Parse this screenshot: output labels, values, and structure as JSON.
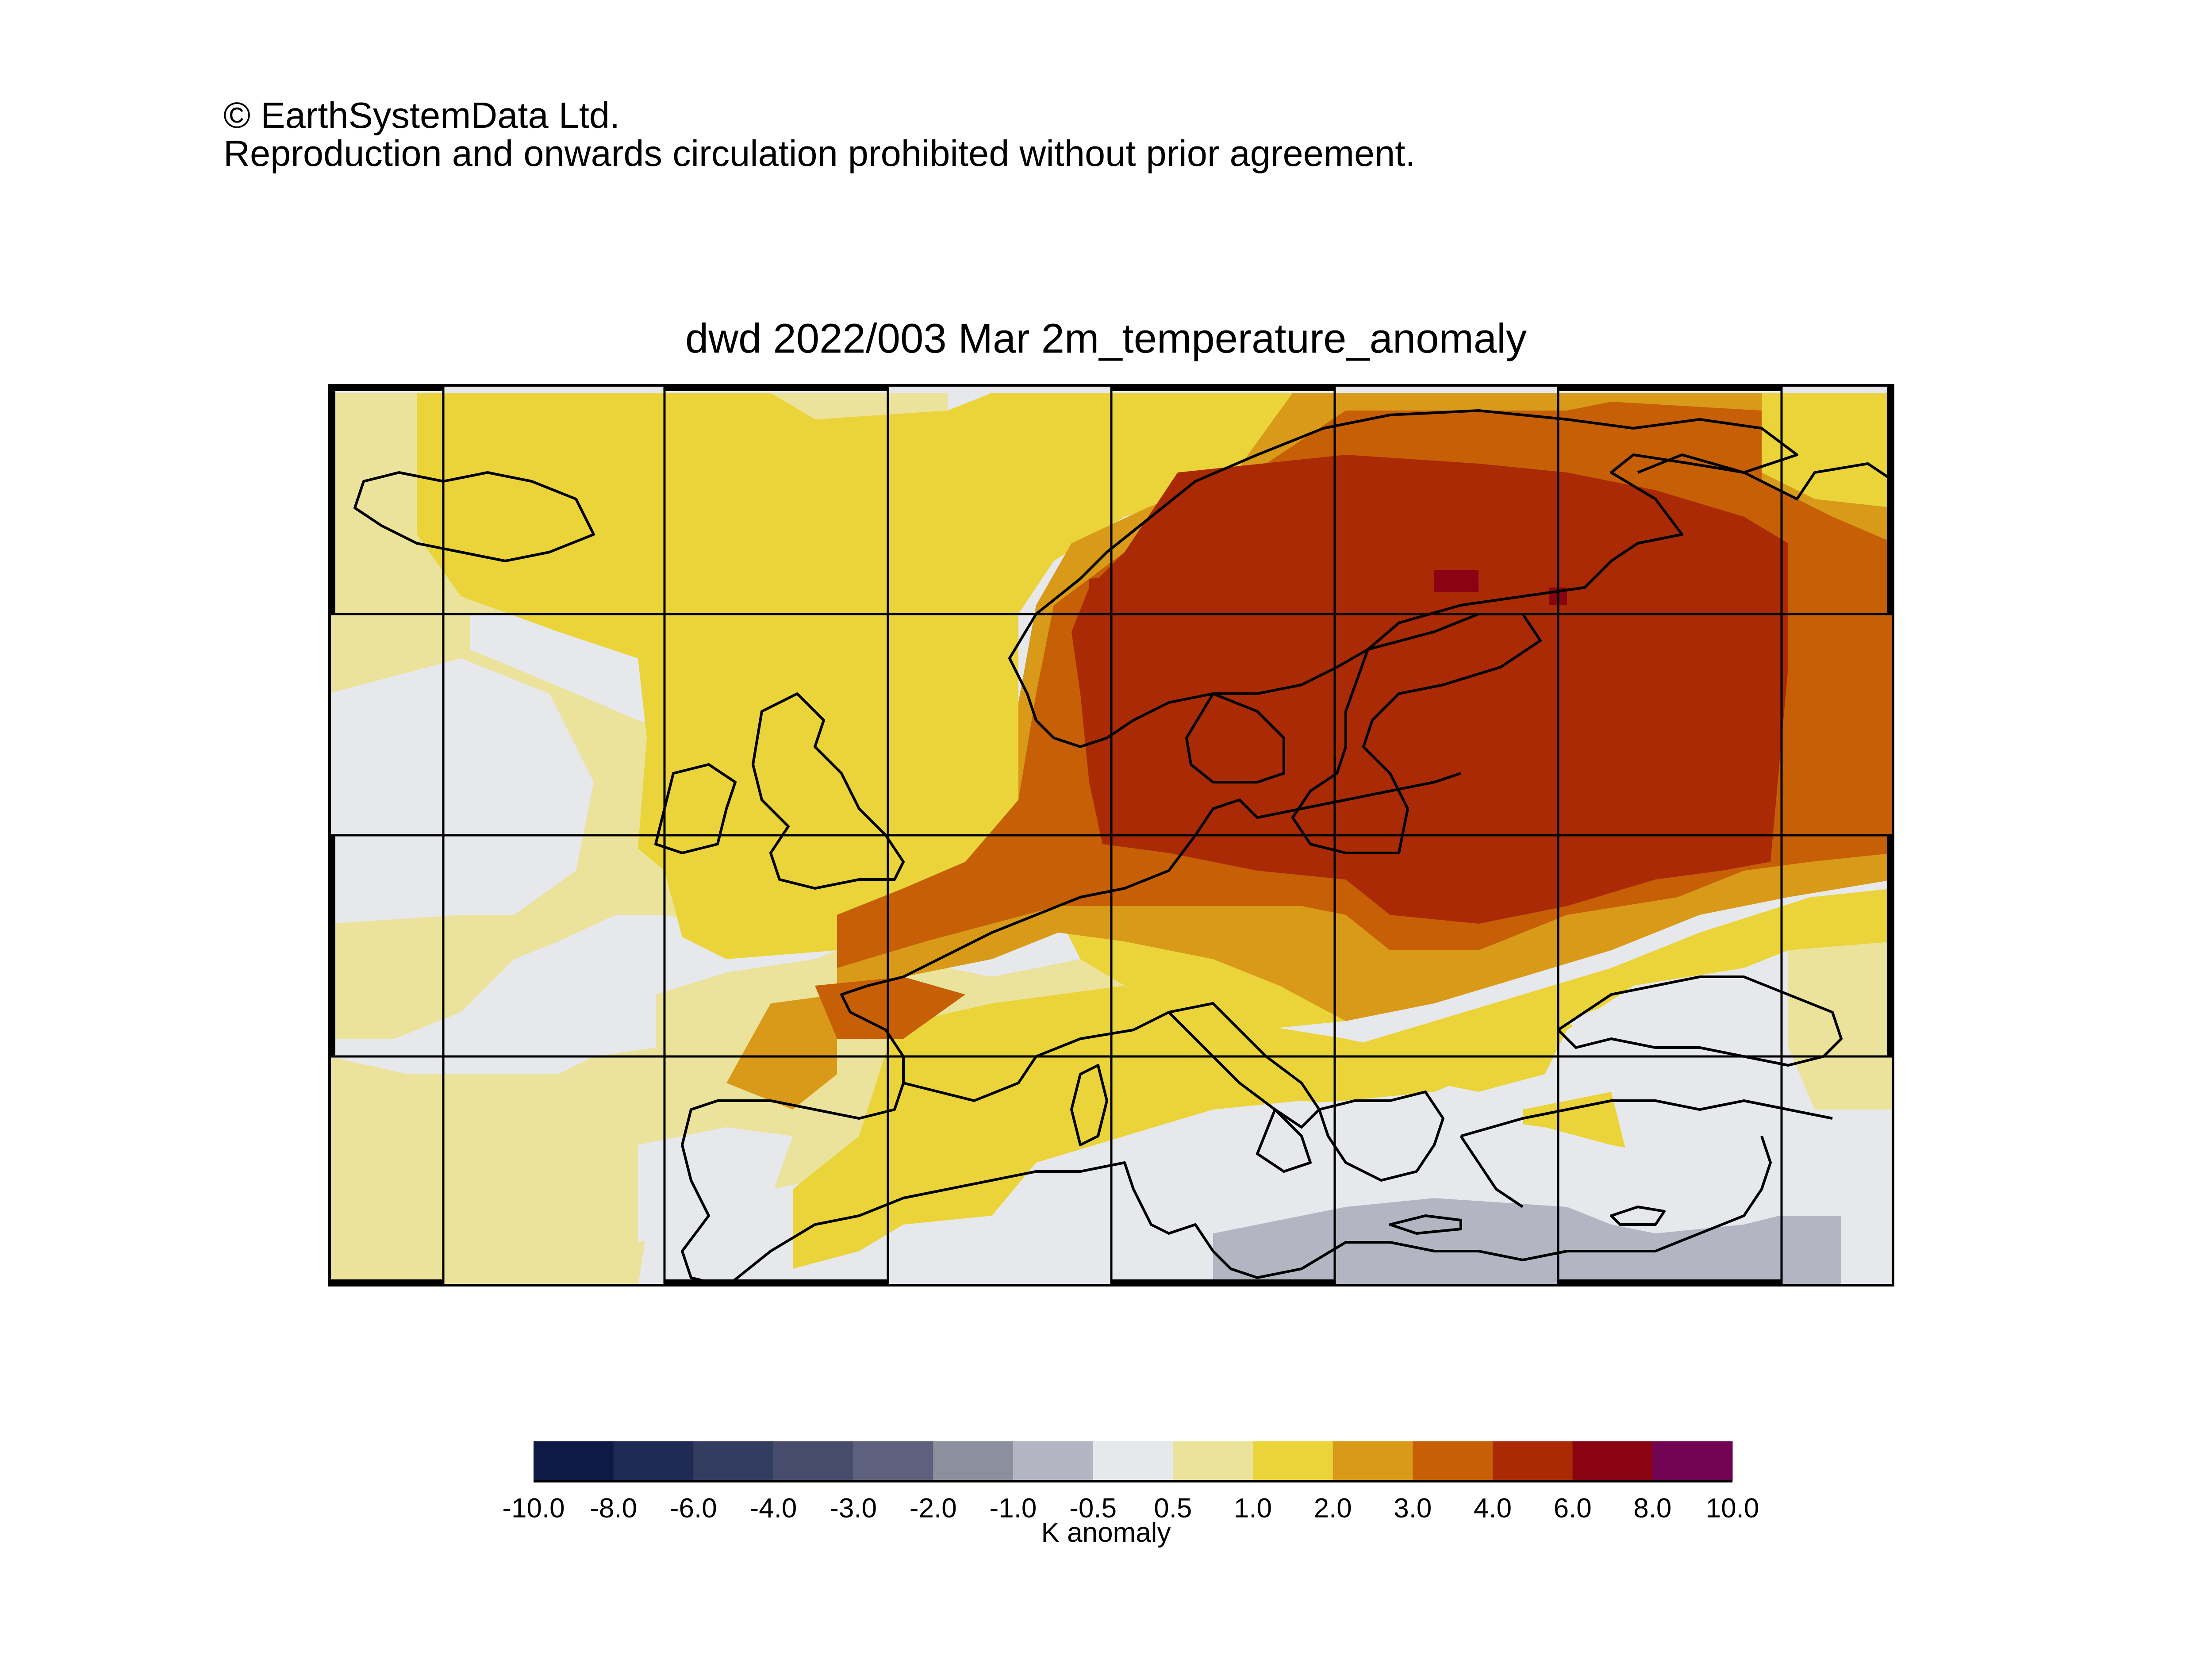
{
  "copyright": {
    "line1": "© EarthSystemData Ltd.",
    "line2": "Reproduction and onwards circulation prohibited without prior agreement."
  },
  "map": {
    "title": "dwd 2022/003 Mar 2m_temperature_anomaly",
    "region": "Europe",
    "graticule_lon": [
      -30,
      -20,
      -10,
      0,
      10,
      20,
      30,
      40,
      50,
      60
    ],
    "graticule_lat": [
      30,
      40,
      50,
      60,
      70
    ],
    "field_summary": {
      "strongest_warm_anomaly": "6.0 to 8.0 over northern Scandinavia / Finland",
      "broad_warm_anomaly": "4.0 to 6.0 over Scandinavia, Baltic, Eastern Europe, Western Russia",
      "cool_anomaly": "-1.0 to -0.5 over North Africa / Libya-Egypt coast"
    }
  },
  "colorbar": {
    "unit_label": "K anomaly",
    "ticks": [
      "-10.0",
      "-8.0",
      "-6.0",
      "-4.0",
      "-3.0",
      "-2.0",
      "-1.0",
      "-0.5",
      "0.5",
      "1.0",
      "2.0",
      "3.0",
      "4.0",
      "6.0",
      "8.0",
      "10.0"
    ],
    "colors": [
      "#0e1a45",
      "#1f2a55",
      "#333d60",
      "#484c6c",
      "#5e617e",
      "#8c8f9e",
      "#b3b5c2",
      "#e6e8ec",
      "#ebe39c",
      "#ead43a",
      "#d89a18",
      "#c65f05",
      "#a92a05",
      "#8a0312",
      "#710353"
    ]
  }
}
